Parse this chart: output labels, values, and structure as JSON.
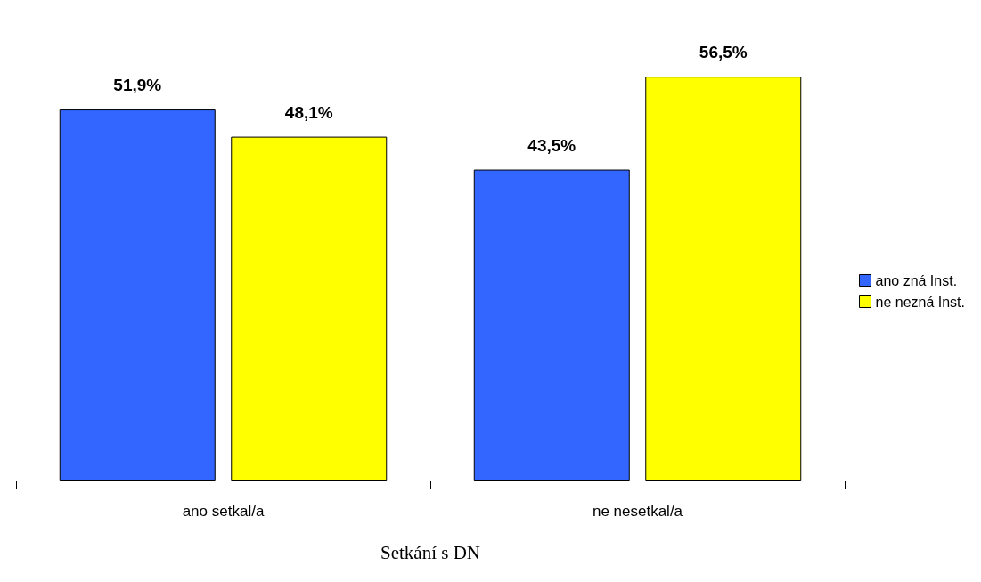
{
  "chart_data": {
    "type": "bar",
    "xlabel": "Setkání s DN",
    "categories": [
      "ano setkal/a",
      "ne nesetkal/a"
    ],
    "series": [
      {
        "name": "ano zná Inst.",
        "color": "#3366ff",
        "values": [
          51.9,
          43.5
        ],
        "value_labels": [
          "51,9%",
          "43,5%"
        ]
      },
      {
        "name": "ne nezná Inst.",
        "color": "#ffff00",
        "values": [
          48.1,
          56.5
        ],
        "value_labels": [
          "48,1%",
          "56,5%"
        ]
      }
    ],
    "grid": false,
    "legend": "right"
  }
}
